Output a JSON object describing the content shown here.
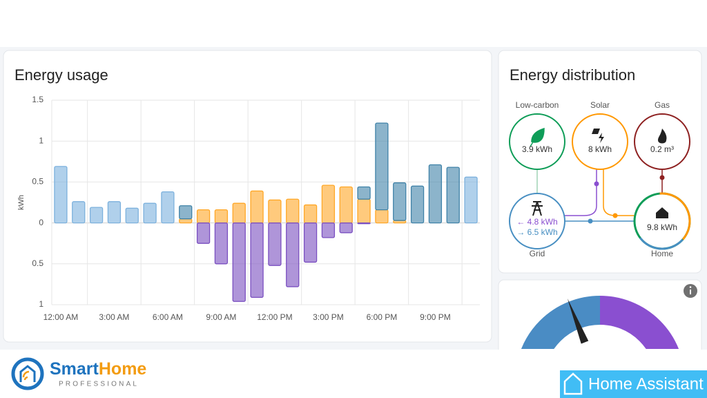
{
  "usage": {
    "title": "Energy usage",
    "chart_data": {
      "type": "bar",
      "stacked": true,
      "ylabel": "kWh",
      "categories": [
        "12:00 AM",
        null,
        null,
        "3:00 AM",
        null,
        null,
        "6:00 AM",
        null,
        null,
        "9:00 AM",
        null,
        null,
        "12:00 PM",
        null,
        null,
        "3:00 PM",
        null,
        null,
        "6:00 PM",
        null,
        null,
        "9:00 PM",
        null,
        null
      ],
      "series": [
        {
          "color": "#7cb1dd",
          "values": [
            0.69,
            0.26,
            0.19,
            0.26,
            0.18,
            0.24,
            0.38,
            null,
            null,
            null,
            null,
            null,
            null,
            null,
            null,
            null,
            null,
            null,
            null,
            null,
            null,
            null,
            null,
            0.56
          ]
        },
        {
          "color": "#ffa726",
          "values": [
            null,
            null,
            null,
            null,
            null,
            null,
            null,
            0.05,
            0.16,
            0.16,
            0.24,
            0.39,
            0.28,
            0.29,
            0.22,
            0.46,
            0.44,
            0.29,
            0.16,
            0.03,
            null,
            null,
            null,
            null
          ]
        },
        {
          "color": "#3f82a8",
          "values": [
            null,
            null,
            null,
            null,
            null,
            null,
            null,
            0.16,
            null,
            null,
            null,
            null,
            null,
            null,
            null,
            null,
            null,
            0.15,
            1.06,
            0.46,
            0.45,
            0.71,
            0.68,
            null
          ]
        },
        {
          "color": "#7a4fc0",
          "values": [
            null,
            null,
            null,
            null,
            null,
            null,
            null,
            null,
            -0.25,
            -0.5,
            -0.96,
            -0.91,
            -0.52,
            -0.78,
            -0.48,
            -0.18,
            -0.12,
            -0.01,
            null,
            null,
            null,
            null,
            null,
            null
          ]
        }
      ],
      "ylim": [
        -1,
        1.5
      ],
      "yticks": [
        1.5,
        1,
        0.5,
        0,
        {
          "value": -0.5,
          "label": "0.5"
        },
        {
          "value": -1,
          "label": "1"
        }
      ],
      "grid": true
    }
  },
  "distribution": {
    "title": "Energy distribution",
    "low_carbon": {
      "label": "Low-carbon",
      "value": "3.9 kWh"
    },
    "solar": {
      "label": "Solar",
      "value": "8 kWh"
    },
    "gas": {
      "label": "Gas",
      "value": "0.2 m³"
    },
    "grid": {
      "label": "Grid",
      "returned": "← 4.8 kWh",
      "consumed": "→ 6.5 kWh"
    },
    "home": {
      "label": "Home",
      "value": "9.8 kWh"
    }
  },
  "gauge": {
    "chart_data": {
      "type": "gauge",
      "range": [
        0,
        100
      ],
      "split": 50,
      "value": 38,
      "colors": [
        "#4a8cc4",
        "#8a4fd0"
      ]
    }
  },
  "logos": {
    "smart": "Smart",
    "home": "Home",
    "professional": "PROFESSIONAL",
    "assistant": "Home Assistant"
  }
}
